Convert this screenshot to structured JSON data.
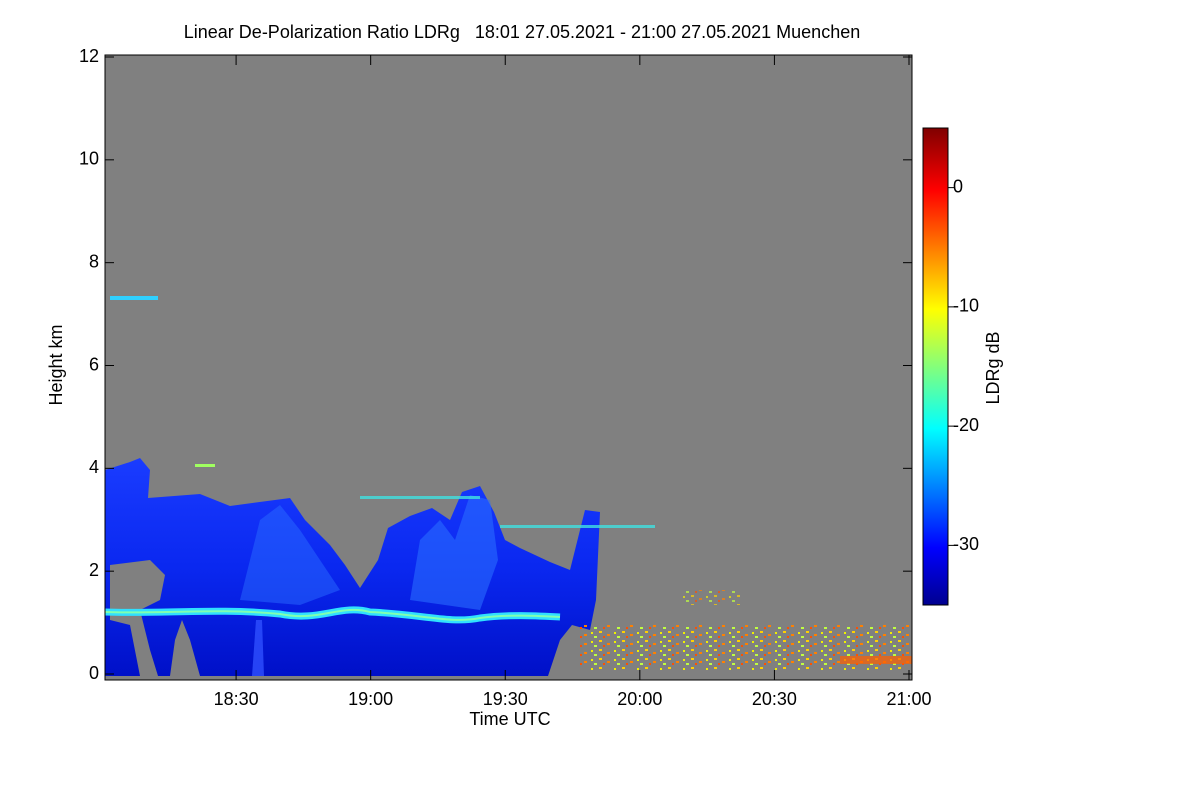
{
  "chart_data": {
    "type": "heatmap",
    "title": "Linear De-Polarization Ratio LDRg   18:01 27.05.2021 - 21:00 27.05.2021 Muenchen",
    "xlabel": "Time UTC",
    "ylabel": "Height km",
    "xlim": [
      18.0167,
      21.0
    ],
    "xticks": [
      {
        "value": 18.5,
        "label": "18:30"
      },
      {
        "value": 19.0,
        "label": "19:00"
      },
      {
        "value": 19.5,
        "label": "19:30"
      },
      {
        "value": 20.0,
        "label": "20:00"
      },
      {
        "value": 20.5,
        "label": "20:30"
      },
      {
        "value": 21.0,
        "label": "21:00"
      }
    ],
    "ylim": [
      0,
      12
    ],
    "yticks": [
      0,
      2,
      4,
      6,
      8,
      10,
      12
    ],
    "colorbar": {
      "label": "LDRg dB",
      "lim": [
        -35,
        5
      ],
      "ticks": [
        0,
        -10,
        -20,
        -30
      ]
    }
  }
}
